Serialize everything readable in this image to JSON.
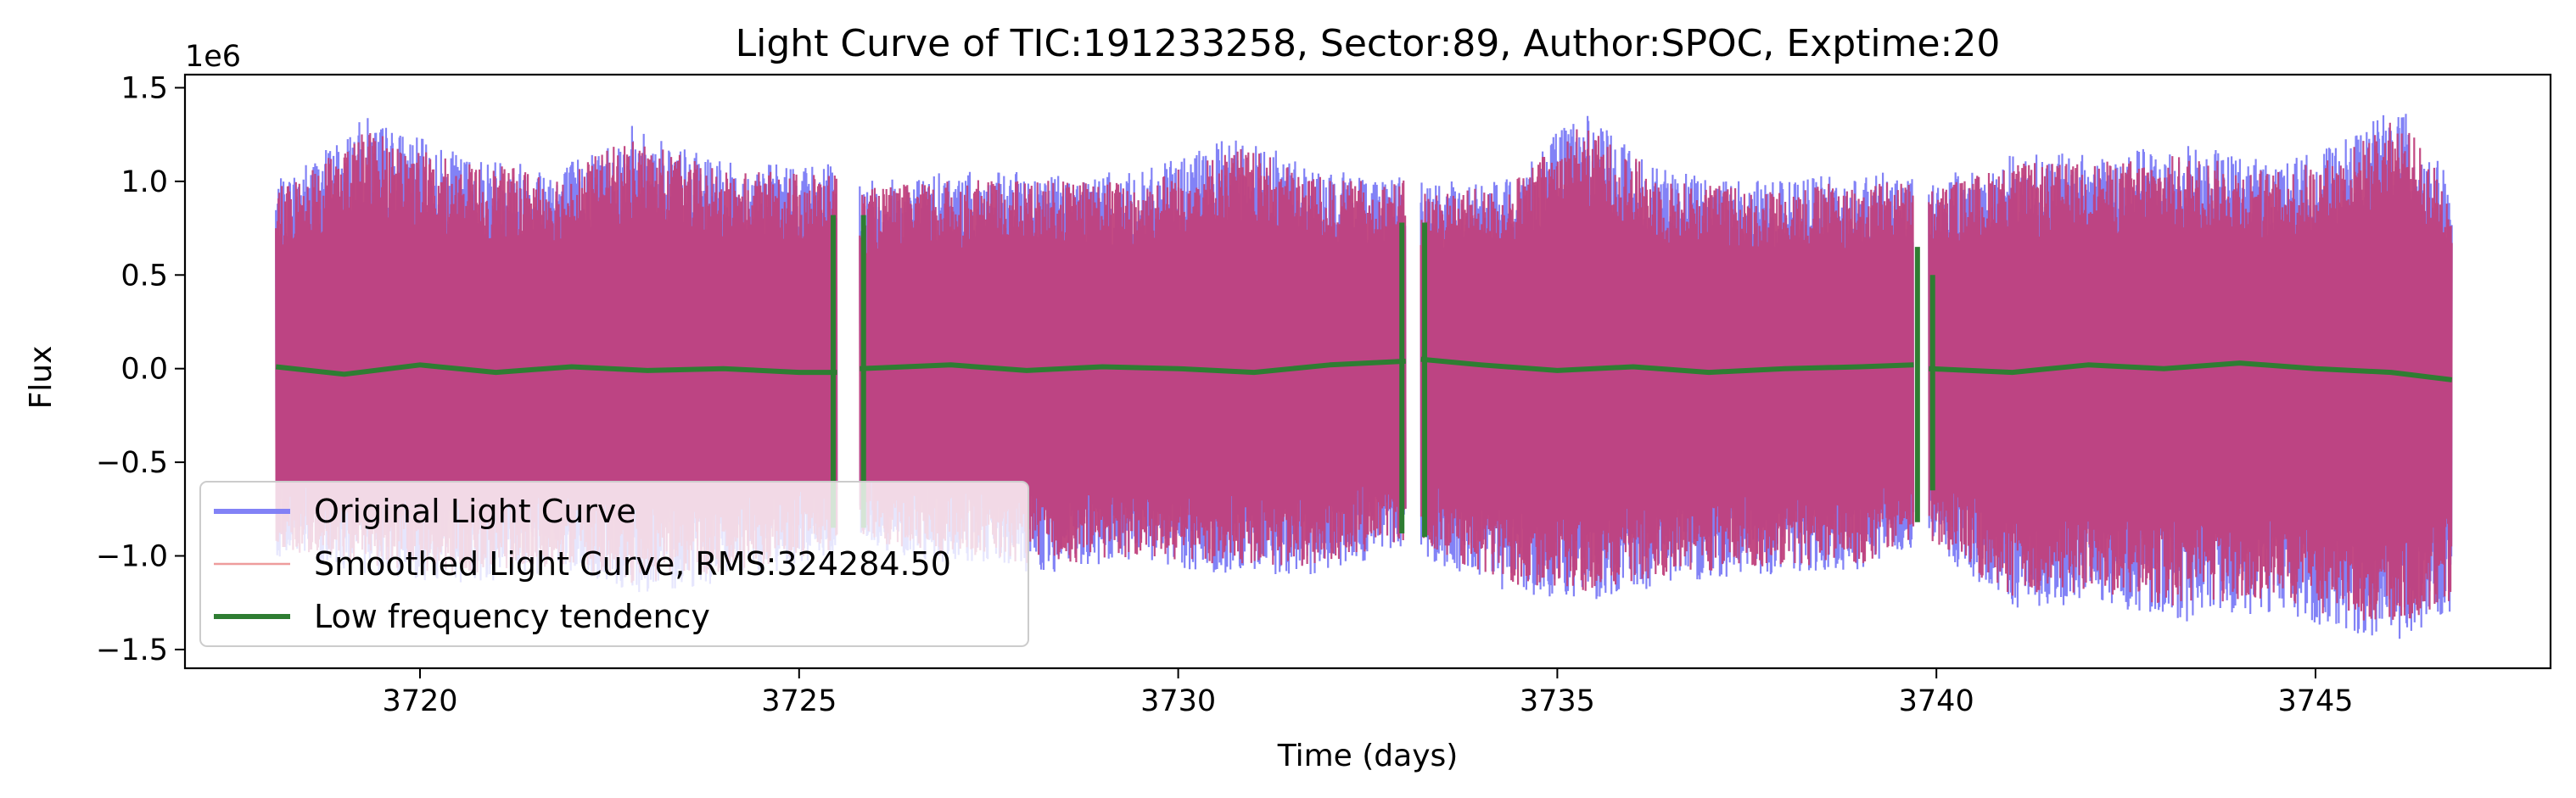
{
  "chart_data": {
    "type": "line",
    "title": "Light Curve of TIC:191233258, Sector:89, Author:SPOC, Exptime:20",
    "xlabel": "Time (days)",
    "ylabel": "Flux",
    "y_offset_label": "1e6",
    "xlim": [
      3716.9,
      3748.1
    ],
    "ylim": [
      -1.6,
      1.57
    ],
    "x_ticks": [
      3720,
      3725,
      3730,
      3735,
      3740,
      3745
    ],
    "x_tick_labels": [
      "3720",
      "3725",
      "3730",
      "3735",
      "3740",
      "3745"
    ],
    "y_ticks": [
      -1.5,
      -1.0,
      -0.5,
      0.0,
      0.5,
      1.0,
      1.5
    ],
    "y_tick_labels": [
      "−1.5",
      "−1.0",
      "−0.5",
      "0.0",
      "0.5",
      "1.0",
      "1.5"
    ],
    "grid": false,
    "legend_position": "lower-left",
    "data_segments": [
      [
        3718.1,
        3725.5
      ],
      [
        3725.8,
        3733.0
      ],
      [
        3733.2,
        3739.7
      ],
      [
        3739.9,
        3746.8
      ]
    ],
    "series": [
      {
        "name": "Original Light Curve",
        "color": "#7b7bf5",
        "description_envelope": {
          "x": [
            3718.1,
            3719.3,
            3720.5,
            3721.9,
            3722.8,
            3724.0,
            3725.5,
            3725.8,
            3727.0,
            3728.3,
            3729.5,
            3730.8,
            3732.0,
            3733.0,
            3733.2,
            3734.3,
            3735.3,
            3736.5,
            3737.8,
            3739.0,
            3739.7,
            3739.9,
            3741.0,
            3742.0,
            3743.3,
            3744.5,
            3745.3,
            3746.1,
            3746.8
          ],
          "upper": [
            1.0,
            1.35,
            1.15,
            1.1,
            1.3,
            1.1,
            1.1,
            1.0,
            1.05,
            1.05,
            1.05,
            1.25,
            1.05,
            1.05,
            1.0,
            1.0,
            1.38,
            1.05,
            1.0,
            1.05,
            1.05,
            1.0,
            1.15,
            1.15,
            1.2,
            1.1,
            1.2,
            1.42,
            1.0
          ],
          "lower": [
            -1.0,
            -1.1,
            -1.15,
            -1.1,
            -1.2,
            -1.15,
            -1.0,
            -0.95,
            -1.05,
            -1.1,
            -1.05,
            -1.1,
            -1.1,
            -0.95,
            -1.0,
            -1.2,
            -1.25,
            -1.15,
            -1.1,
            -1.1,
            -0.95,
            -0.95,
            -1.3,
            -1.25,
            -1.35,
            -1.3,
            -1.4,
            -1.45,
            -1.3
          ]
        }
      },
      {
        "name": "Smoothed Light Curve, RMS:324284.50",
        "color": "#c0407c",
        "rms": 324284.5
      },
      {
        "name": "Low frequency tendency",
        "color": "#2e7d32",
        "x": [
          3718.1,
          3719.0,
          3720.0,
          3721.0,
          3722.0,
          3723.0,
          3724.0,
          3725.0,
          3725.5,
          3725.8,
          3727.0,
          3728.0,
          3729.0,
          3730.0,
          3731.0,
          3732.0,
          3733.0,
          3733.2,
          3734.0,
          3735.0,
          3736.0,
          3737.0,
          3738.0,
          3739.0,
          3739.7,
          3739.9,
          3741.0,
          3742.0,
          3743.0,
          3744.0,
          3745.0,
          3746.0,
          3746.8
        ],
        "values": [
          0.01,
          -0.03,
          0.02,
          -0.02,
          0.01,
          -0.01,
          0.0,
          -0.02,
          -0.02,
          0.0,
          0.02,
          -0.01,
          0.01,
          0.0,
          -0.02,
          0.02,
          0.04,
          0.05,
          0.02,
          -0.01,
          0.01,
          -0.02,
          0.0,
          0.01,
          0.02,
          0.0,
          -0.02,
          0.02,
          0.0,
          0.03,
          0.0,
          -0.02,
          -0.06
        ],
        "edge_spikes": [
          {
            "x": 3725.45,
            "low": -0.85,
            "high": 0.82
          },
          {
            "x": 3725.85,
            "low": -0.85,
            "high": 0.82
          },
          {
            "x": 3732.95,
            "low": -0.88,
            "high": 0.78
          },
          {
            "x": 3733.25,
            "low": -0.9,
            "high": 0.78
          },
          {
            "x": 3739.75,
            "low": -0.82,
            "high": 0.65
          },
          {
            "x": 3739.95,
            "low": -0.65,
            "high": 0.5
          }
        ]
      }
    ]
  }
}
